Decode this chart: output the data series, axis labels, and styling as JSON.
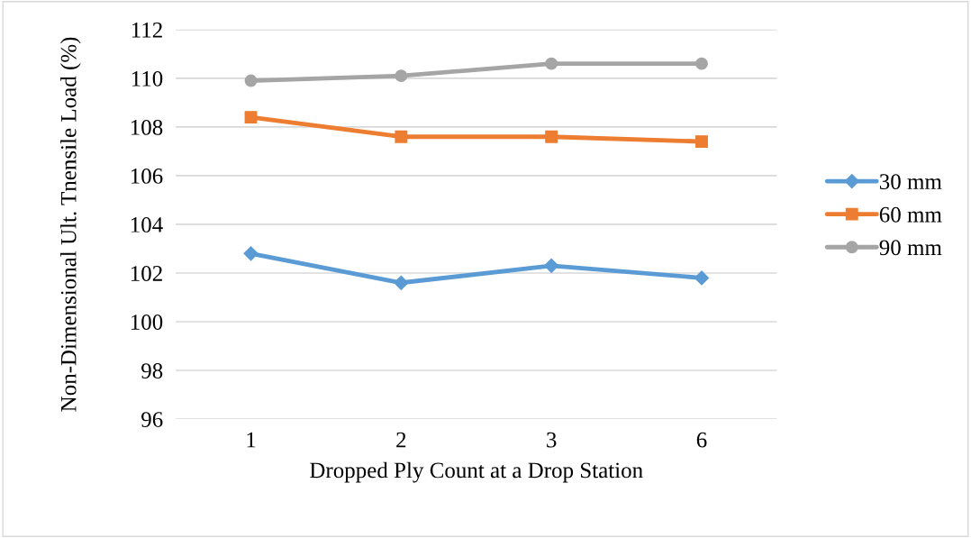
{
  "chart_data": {
    "type": "line",
    "xlabel": "Dropped Ply Count at a Drop Station",
    "ylabel": "Non-Dimensional Ult. Tnensile Load (%)",
    "categories": [
      "1",
      "2",
      "3",
      "6"
    ],
    "series": [
      {
        "name": "30 mm",
        "color": "#5b9bd5",
        "marker": "diamond",
        "values": [
          102.8,
          101.6,
          102.3,
          101.8
        ]
      },
      {
        "name": "60 mm",
        "color": "#ed7d31",
        "marker": "square",
        "values": [
          108.4,
          107.6,
          107.6,
          107.4
        ]
      },
      {
        "name": "90 mm",
        "color": "#a5a5a5",
        "marker": "circle",
        "values": [
          109.9,
          110.1,
          110.6,
          110.6
        ]
      }
    ],
    "ylim": [
      96,
      112
    ],
    "yticks": [
      96,
      98,
      100,
      102,
      104,
      106,
      108,
      110,
      112
    ],
    "grid": "y",
    "legend": "right"
  }
}
